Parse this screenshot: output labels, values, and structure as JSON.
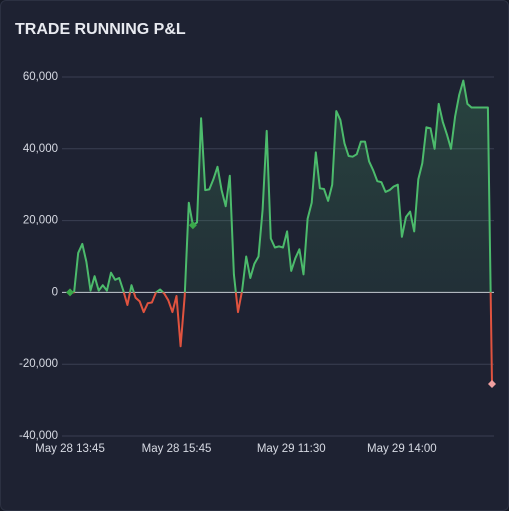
{
  "chart_data": {
    "type": "line",
    "title": "TRADE RUNNING P&L",
    "categories": [
      "May 28 13:45",
      null,
      null,
      null,
      null,
      null,
      null,
      null,
      null,
      null,
      null,
      null,
      null,
      null,
      null,
      null,
      null,
      null,
      null,
      null,
      null,
      null,
      null,
      null,
      null,
      null,
      "May 28 15:45",
      null,
      null,
      null,
      null,
      null,
      null,
      null,
      null,
      null,
      null,
      null,
      null,
      null,
      null,
      null,
      null,
      null,
      null,
      null,
      null,
      null,
      null,
      null,
      null,
      null,
      null,
      null,
      "May 29 11:30",
      null,
      null,
      null,
      null,
      null,
      null,
      null,
      null,
      null,
      null,
      null,
      null,
      null,
      null,
      null,
      null,
      null,
      null,
      null,
      null,
      null,
      null,
      null,
      null,
      null,
      null,
      "May 29 14:00",
      null,
      null,
      null,
      null,
      null,
      null,
      null,
      null,
      null,
      null,
      null,
      null,
      null,
      null,
      null,
      null,
      null,
      null,
      null,
      null,
      null,
      null
    ],
    "values": [
      0,
      0,
      11000,
      13500,
      8500,
      500,
      4500,
      500,
      2000,
      500,
      5500,
      3500,
      4000,
      500,
      -3500,
      2000,
      -1500,
      -2500,
      -5500,
      -3000,
      -2800,
      0,
      800,
      -300,
      -2200,
      -5500,
      -1000,
      -15000,
      -1000,
      25000,
      18700,
      19500,
      48500,
      28500,
      28700,
      31500,
      35000,
      28500,
      24000,
      32500,
      5000,
      -5500,
      500,
      10000,
      4000,
      8000,
      10000,
      23000,
      45000,
      15000,
      12500,
      12800,
      12500,
      17000,
      6000,
      9500,
      12000,
      5000,
      20500,
      25000,
      39000,
      29000,
      28800,
      25500,
      30000,
      50500,
      48000,
      41500,
      38000,
      37800,
      38500,
      42000,
      42000,
      36500,
      34000,
      31000,
      30700,
      28000,
      28500,
      29500,
      30000,
      15500,
      21000,
      22500,
      17000,
      31500,
      36000,
      46000,
      45700,
      40000,
      52500,
      47500,
      44000,
      40000,
      49000,
      55000,
      59000,
      52500,
      51500,
      51500,
      51500,
      51500,
      51500,
      -25500
    ],
    "color": "#4cbb6c",
    "negative_color": "#e0533f",
    "ylim": [
      -40000,
      60000
    ],
    "yticks": [
      {
        "value": -40000,
        "label": "-40,000"
      },
      {
        "value": -20000,
        "label": "-20,000"
      },
      0,
      {
        "value": 20000,
        "label": "20,000"
      },
      {
        "value": 40000,
        "label": "40,000"
      },
      {
        "value": 60000,
        "label": "60,000"
      }
    ],
    "grid": true,
    "markers": [
      0,
      30,
      103
    ]
  }
}
